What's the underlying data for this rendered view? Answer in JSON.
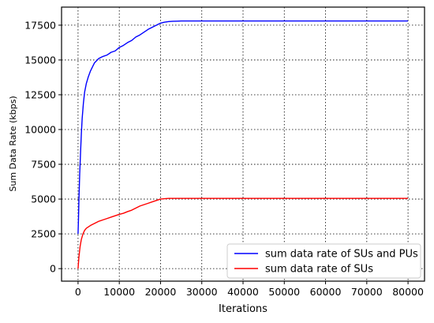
{
  "chart_data": {
    "type": "line",
    "title": "",
    "xlabel": "Iterations",
    "ylabel": "Sum Data Rate (kbps)",
    "xlim": [
      -4000,
      84000
    ],
    "ylim": [
      -900,
      18800
    ],
    "x_ticks": [
      0,
      10000,
      20000,
      30000,
      40000,
      50000,
      60000,
      70000,
      80000
    ],
    "x_tick_labels": [
      "0",
      "10000",
      "20000",
      "30000",
      "40000",
      "50000",
      "60000",
      "70000",
      "80000"
    ],
    "y_ticks": [
      0,
      2500,
      5000,
      7500,
      10000,
      12500,
      15000,
      17500
    ],
    "y_tick_labels": [
      "0",
      "2500",
      "5000",
      "7500",
      "10000",
      "12500",
      "15000",
      "17500"
    ],
    "grid": true,
    "grid_style": "dotted",
    "legend_position": "bottom-right",
    "series": [
      {
        "name": "sum data rate of SUs and PUs",
        "color": "#0000ff",
        "x": [
          0,
          100,
          200,
          400,
          600,
          800,
          1000,
          1300,
          1600,
          2000,
          2500,
          3000,
          3500,
          4000,
          5000,
          6000,
          7000,
          8000,
          9000,
          10000,
          11000,
          12000,
          13000,
          14000,
          15000,
          16000,
          17000,
          18000,
          19000,
          20000,
          21000,
          22000,
          23000,
          24000,
          25000,
          30000,
          40000,
          50000,
          60000,
          70000,
          80000
        ],
        "y": [
          2500,
          3500,
          4800,
          6800,
          8300,
          9700,
          10800,
          11900,
          12700,
          13300,
          13800,
          14200,
          14500,
          14800,
          15100,
          15250,
          15350,
          15550,
          15650,
          15900,
          16050,
          16250,
          16400,
          16650,
          16800,
          17000,
          17200,
          17350,
          17500,
          17650,
          17720,
          17760,
          17780,
          17790,
          17800,
          17800,
          17800,
          17800,
          17800,
          17800,
          17800
        ]
      },
      {
        "name": "sum data rate of SUs",
        "color": "#ff0000",
        "x": [
          0,
          200,
          500,
          800,
          1200,
          1600,
          2000,
          2500,
          3000,
          4000,
          5000,
          6000,
          7000,
          8000,
          9000,
          10000,
          11000,
          12000,
          13000,
          14000,
          15000,
          16000,
          17000,
          18000,
          19000,
          20000,
          21000,
          22000,
          25000,
          30000,
          40000,
          50000,
          60000,
          70000,
          80000
        ],
        "y": [
          0,
          800,
          1600,
          2100,
          2500,
          2750,
          2900,
          3000,
          3100,
          3250,
          3400,
          3500,
          3600,
          3700,
          3800,
          3900,
          3980,
          4100,
          4200,
          4350,
          4500,
          4600,
          4700,
          4800,
          4900,
          5000,
          5030,
          5050,
          5050,
          5050,
          5050,
          5050,
          5050,
          5050,
          5050
        ]
      }
    ]
  }
}
